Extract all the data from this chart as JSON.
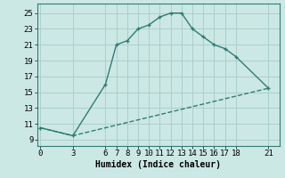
{
  "line1_x": [
    0,
    3,
    6,
    7,
    8,
    9,
    10,
    11,
    12,
    13,
    14,
    15,
    16,
    17,
    18,
    21
  ],
  "line1_y": [
    10.5,
    9.5,
    16.0,
    21.0,
    21.5,
    23.0,
    23.5,
    24.5,
    25.0,
    25.0,
    23.0,
    22.0,
    21.0,
    20.5,
    19.5,
    15.5
  ],
  "line2_x": [
    0,
    3,
    21
  ],
  "line2_y": [
    10.5,
    9.5,
    15.5
  ],
  "color": "#2e7d72",
  "bg_color": "#cce8e4",
  "grid_color": "#aacfcb",
  "xlabel": "Humidex (Indice chaleur)",
  "xticks": [
    0,
    3,
    6,
    7,
    8,
    9,
    10,
    11,
    12,
    13,
    14,
    15,
    16,
    17,
    18,
    21
  ],
  "yticks": [
    9,
    11,
    13,
    15,
    17,
    19,
    21,
    23,
    25
  ],
  "ylim": [
    8.2,
    26.2
  ],
  "xlim": [
    -0.3,
    22.0
  ],
  "xlabel_fontsize": 7,
  "tick_fontsize": 6.5,
  "line_width": 1.0,
  "marker": "P",
  "marker_size": 3.5
}
